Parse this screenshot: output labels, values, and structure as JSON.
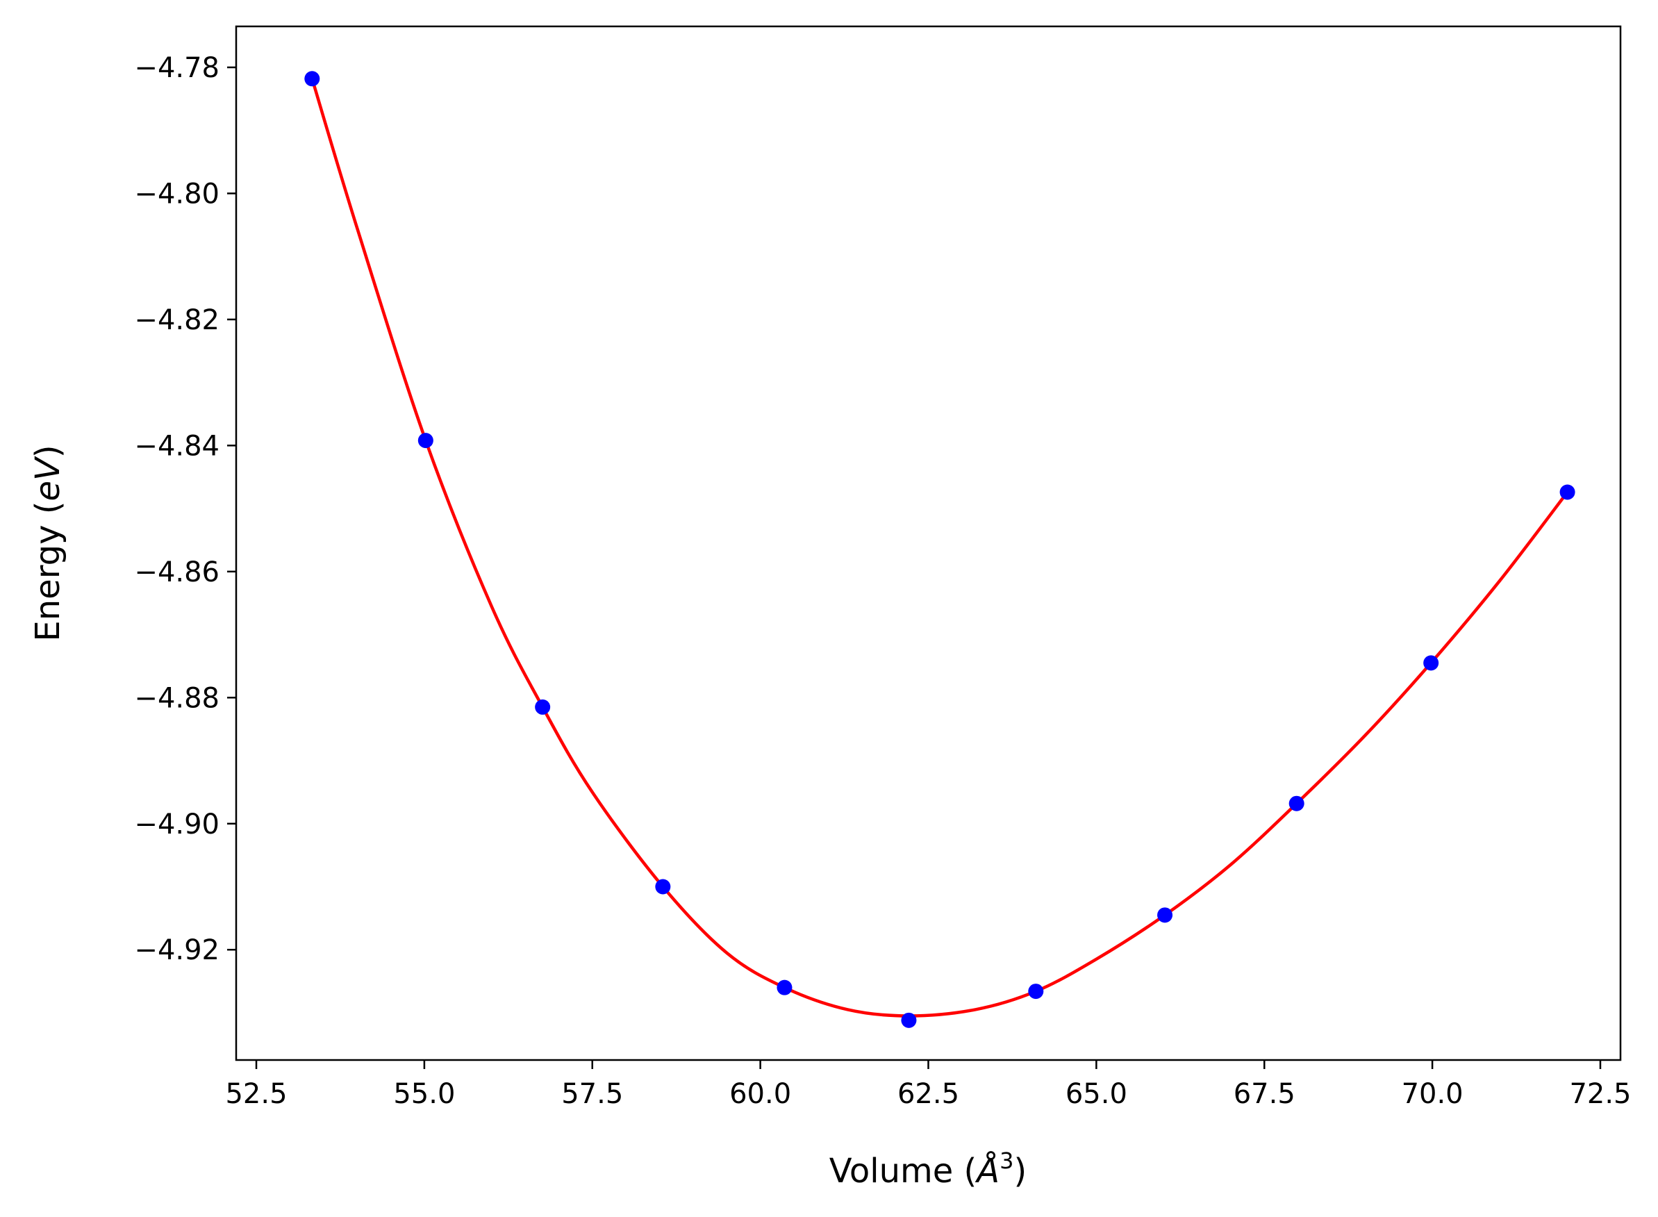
{
  "chart_data": {
    "type": "scatter",
    "title": "",
    "xlabel": "Volume ($\\AA^3$)",
    "xlabel_parts": {
      "prefix": "Volume (",
      "base": "Å",
      "sup": "3",
      "suffix": ")"
    },
    "ylabel": "Energy ($eV$)",
    "ylabel_parts": {
      "prefix": "Energy (",
      "italic": "eV",
      "suffix": ")"
    },
    "xlim": [
      52.2,
      72.8
    ],
    "ylim": [
      -4.9375,
      -4.7735
    ],
    "x_ticks": [
      52.5,
      55.0,
      57.5,
      60.0,
      62.5,
      65.0,
      67.5,
      70.0,
      72.5
    ],
    "x_tick_labels": [
      "52.5",
      "55.0",
      "57.5",
      "60.0",
      "62.5",
      "65.0",
      "67.5",
      "70.0",
      "72.5"
    ],
    "y_ticks": [
      -4.78,
      -4.8,
      -4.82,
      -4.84,
      -4.86,
      -4.88,
      -4.9,
      -4.92
    ],
    "y_tick_labels": [
      "−4.78",
      "−4.80",
      "−4.82",
      "−4.84",
      "−4.86",
      "−4.88",
      "−4.90",
      "−4.92"
    ],
    "grid": false,
    "legend": "none",
    "series": [
      {
        "kind": "points",
        "color": "#0000ff",
        "x": [
          53.33,
          55.02,
          56.76,
          58.55,
          60.36,
          62.21,
          64.1,
          66.02,
          67.98,
          69.98,
          72.01
        ],
        "y": [
          -4.7818,
          -4.8392,
          -4.8815,
          -4.91,
          -4.926,
          -4.9312,
          -4.9266,
          -4.9145,
          -4.8968,
          -4.8745,
          -4.8474
        ]
      },
      {
        "kind": "fit-curve",
        "color": "#ff0000",
        "x": [
          53.33,
          54.0,
          55.02,
          56.0,
          56.76,
          57.5,
          58.55,
          59.5,
          60.36,
          61.3,
          62.21,
          63.2,
          64.1,
          65.0,
          66.02,
          67.0,
          67.98,
          69.0,
          69.98,
          71.0,
          72.01
        ],
        "y": [
          -4.7818,
          -4.8055,
          -4.8392,
          -4.8655,
          -4.8815,
          -4.895,
          -4.91,
          -4.9205,
          -4.926,
          -4.9295,
          -4.9305,
          -4.9295,
          -4.9266,
          -4.9215,
          -4.9145,
          -4.9065,
          -4.8968,
          -4.886,
          -4.8745,
          -4.8615,
          -4.8474
        ]
      }
    ]
  }
}
